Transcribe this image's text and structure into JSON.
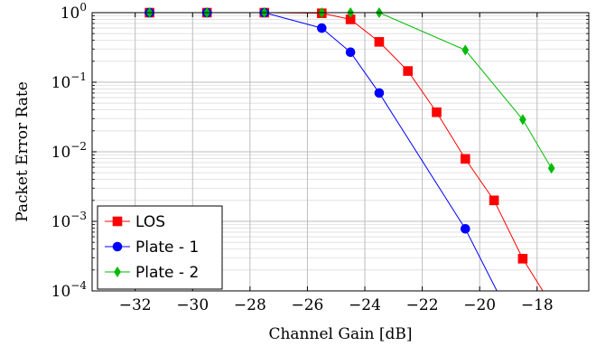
{
  "chart_data": {
    "type": "line",
    "xlabel": "Channel Gain [dB]",
    "ylabel": "Packet Error Rate",
    "y_scale": "log",
    "xlim": [
      -33.5,
      -16.2
    ],
    "ylim": [
      0.0001,
      1
    ],
    "x_ticks": [
      -32,
      -30,
      -28,
      -26,
      -24,
      -22,
      -20,
      -18
    ],
    "x_tick_labels": [
      "−32",
      "−30",
      "−28",
      "−26",
      "−24",
      "−22",
      "−20",
      "−18"
    ],
    "y_ticks": [
      {
        "value": 1,
        "base": "10",
        "exp": "0"
      },
      {
        "value": 0.1,
        "base": "10",
        "exp": "−1"
      },
      {
        "value": 0.01,
        "base": "10",
        "exp": "−2"
      },
      {
        "value": 0.001,
        "base": "10",
        "exp": "−3"
      },
      {
        "value": 0.0001,
        "base": "10",
        "exp": "−4"
      }
    ],
    "grid": true,
    "legend_position": "bottom-left",
    "series": [
      {
        "name": "LOS",
        "color": "#ff0000",
        "marker": "square",
        "x": [
          -31.5,
          -29.5,
          -27.5,
          -25.5,
          -24.5,
          -23.5,
          -22.5,
          -21.5,
          -20.5,
          -19.5,
          -18.5,
          -17.8
        ],
        "y": [
          1,
          1,
          1,
          0.98,
          0.8,
          0.38,
          0.145,
          0.037,
          0.0079,
          0.002,
          0.00029,
          0.0001
        ]
      },
      {
        "name": "Plate - 1",
        "color": "#0000ff",
        "marker": "circle",
        "x": [
          -31.5,
          -29.5,
          -27.5,
          -25.5,
          -24.5,
          -23.5,
          -20.5,
          -19.4
        ],
        "y": [
          1,
          1,
          1,
          0.6,
          0.27,
          0.07,
          0.00078,
          0.0001
        ]
      },
      {
        "name": "Plate - 2",
        "color": "#00bb00",
        "marker": "diamond",
        "x": [
          -31.5,
          -29.5,
          -27.5,
          -25.5,
          -24.5,
          -23.5,
          -20.5,
          -18.5,
          -17.5
        ],
        "y": [
          1,
          1,
          1,
          1,
          1,
          1,
          0.29,
          0.029,
          0.0058
        ]
      }
    ]
  }
}
